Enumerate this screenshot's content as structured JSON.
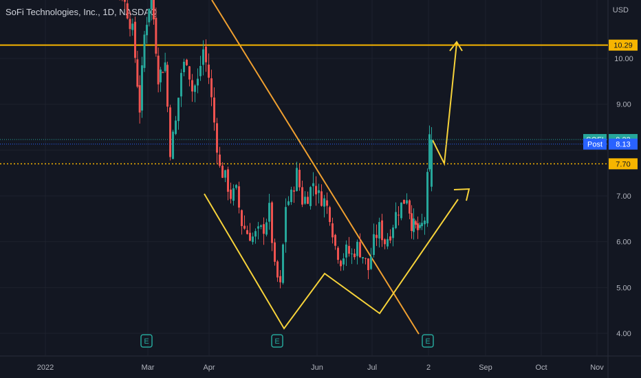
{
  "header": {
    "title": "SoFi Technologies, Inc., 1D, NASDAQ"
  },
  "axis": {
    "currency": "USD"
  },
  "price_tags": [
    {
      "label": "SOFI",
      "value": "8.23",
      "color": "#26a69a"
    },
    {
      "label": "Post",
      "value": "8.13",
      "color": "#2962ff"
    },
    {
      "label": "",
      "value": "7.70",
      "color": "#f7b500"
    },
    {
      "label": "",
      "value": "10.29",
      "color": "#f7b500"
    }
  ],
  "earnings_marker": "E",
  "colors": {
    "up": "#26a69a",
    "down": "#ef5350",
    "drawing_orange": "#f0a030",
    "drawing_yellow": "#f7d33a",
    "level": "#f7b500"
  },
  "chart_data": {
    "type": "candlestick",
    "title": "SoFi Technologies, Inc., 1D, NASDAQ",
    "y_ticks": [
      4,
      5,
      6,
      7,
      8,
      9,
      10
    ],
    "y_tick_labels": [
      "4.00",
      "5.00",
      "6.00",
      "7.00",
      "",
      "9.00",
      "10.00"
    ],
    "ylim": [
      3.55,
      11.2
    ],
    "x_ticks": [
      "2022",
      "Mar",
      "Apr",
      "Jun",
      "Jul",
      "2",
      "Sep",
      "Oct",
      "Nov"
    ],
    "horizontal_levels": [
      10.29,
      7.7,
      8.23,
      8.13
    ],
    "earnings_dates": [
      "2022-03-01",
      "2022-05-10",
      "2022-08-01"
    ],
    "closes_by_segment": [
      {
        "period": "Feb",
        "close_range": [
          10.5,
          12.5
        ]
      },
      {
        "period": "Mar",
        "close_range": [
          8.0,
          10.5
        ]
      },
      {
        "period": "Apr",
        "close_range": [
          6.0,
          10.0
        ]
      },
      {
        "period": "May",
        "close_range": [
          4.9,
          7.5
        ]
      },
      {
        "period": "Jun",
        "close_range": [
          5.2,
          7.1
        ]
      },
      {
        "period": "Jul",
        "close_range": [
          5.5,
          7.1
        ]
      },
      {
        "period": "Aug",
        "close_range": [
          6.2,
          8.4
        ]
      }
    ],
    "last": 8.23
  }
}
